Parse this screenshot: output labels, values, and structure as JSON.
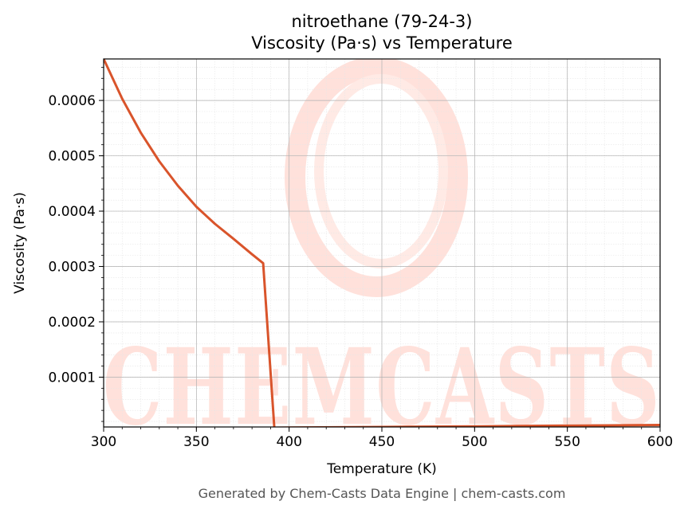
{
  "colors": {
    "line": "#d9542b",
    "watermark": "#ffe1db",
    "grid_major": "#b0b0b0",
    "grid_minor": "#e6e6e6",
    "footer_text": "#555555"
  },
  "watermark": {
    "text": "CHEMCASTS",
    "logo": "swirl-logo"
  },
  "footer": "Generated by Chem-Casts Data Engine | chem-casts.com",
  "chart_data": {
    "type": "line",
    "title": "nitroethane (79-24-3)",
    "subtitle": "Viscosity (Pa·s) vs Temperature",
    "xlabel": "Temperature (K)",
    "ylabel": "Viscosity (Pa·s)",
    "xlim": [
      300,
      600
    ],
    "ylim": [
      1e-05,
      0.000675
    ],
    "xticks": [
      300,
      350,
      400,
      450,
      500,
      550,
      600
    ],
    "xtick_labels": [
      "300",
      "350",
      "400",
      "450",
      "500",
      "550",
      "600"
    ],
    "yticks": [
      0.0001,
      0.0002,
      0.0003,
      0.0004,
      0.0005,
      0.0006
    ],
    "ytick_labels": [
      "0.0001",
      "0.0002",
      "0.0003",
      "0.0004",
      "0.0005",
      "0.0006"
    ],
    "grid": true,
    "minor_grid": true,
    "legend": false,
    "series": [
      {
        "x": [
          300,
          310,
          320,
          330,
          340,
          350,
          360,
          370,
          380,
          386,
          392,
          400,
          450,
          500,
          550,
          600
        ],
        "y": [
          0.000675,
          0.000603,
          0.000542,
          0.00049,
          0.000446,
          0.000408,
          0.000377,
          0.00035,
          0.000322,
          0.000306,
          8.5e-06,
          8.8e-06,
          1e-05,
          1.12e-05,
          1.24e-05,
          1.36e-05
        ]
      }
    ]
  }
}
